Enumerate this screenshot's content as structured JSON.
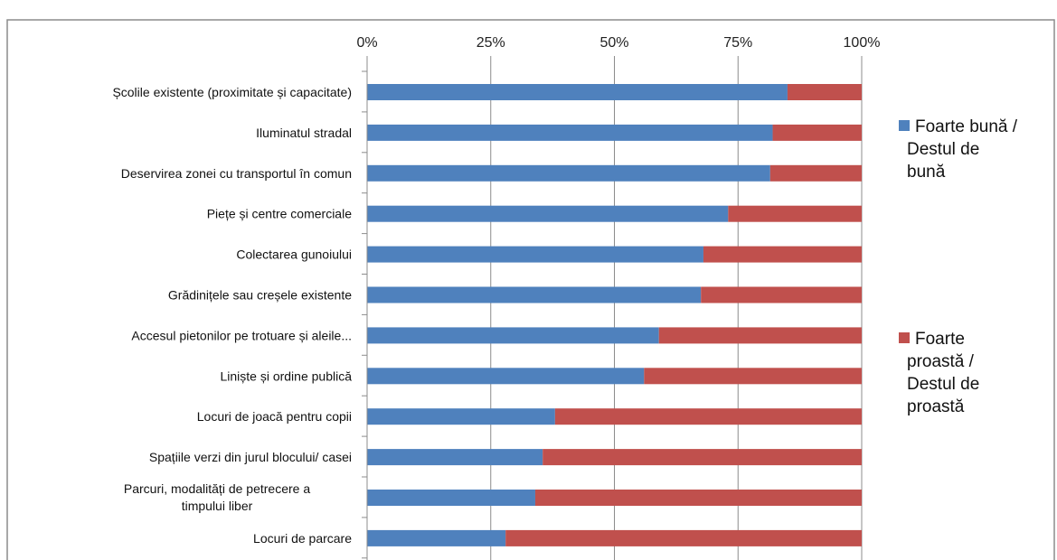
{
  "chart_data": {
    "type": "bar",
    "orientation": "horizontal",
    "stacked": true,
    "percent_stacked": true,
    "categories": [
      "Școlile existente (proximitate și capacitate)",
      "Iluminatul stradal",
      "Deservirea zonei cu transportul în comun",
      "Piețe și centre comerciale",
      "Colectarea gunoiului",
      "Grădinițele sau creșele existente",
      "Accesul pietonilor pe trotuare și aleile...",
      "Liniște și ordine publică",
      "Locuri de joacă pentru copii",
      "Spațiile verzi din jurul blocului/ casei",
      "Parcuri, modalități de petrecere a timpului liber",
      "Locuri de parcare"
    ],
    "series": [
      {
        "name": "Foarte bună / Destul de bună",
        "color": "#4f81bd",
        "values": [
          85,
          82,
          81.5,
          73,
          68,
          67.5,
          59,
          56,
          38,
          35.5,
          34,
          28
        ]
      },
      {
        "name": "Foarte proastă / Destul de proastă",
        "color": "#c0504d",
        "values": [
          15,
          18,
          18.5,
          27,
          32,
          32.5,
          41,
          44,
          62,
          64.5,
          66,
          72
        ]
      }
    ],
    "x_tick_labels": [
      "0%",
      "25%",
      "50%",
      "75%",
      "100%"
    ],
    "xlim": [
      0,
      100
    ],
    "x_axis_position": "top",
    "grid": true,
    "legend_position": "right",
    "legend_lines": [
      [
        "Foarte bună /",
        "Destul de",
        "bună"
      ],
      [
        "Foarte",
        "proastă /",
        "Destul de",
        "proastă"
      ]
    ],
    "title": "",
    "xlabel": "",
    "ylabel": ""
  }
}
